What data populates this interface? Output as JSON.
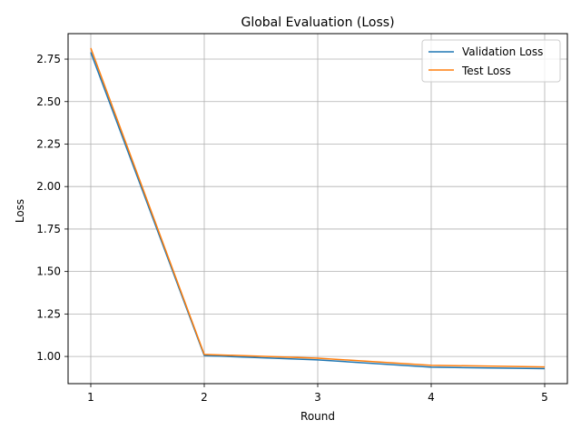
{
  "chart_data": {
    "type": "line",
    "title": "Global Evaluation (Loss)",
    "xlabel": "Round",
    "ylabel": "Loss",
    "x": [
      1,
      2,
      3,
      4,
      5
    ],
    "xticks": [
      1,
      2,
      3,
      4,
      5
    ],
    "yticks": [
      1.0,
      1.25,
      1.5,
      1.75,
      2.0,
      2.25,
      2.5,
      2.75
    ],
    "ytick_labels": [
      "1.00",
      "1.25",
      "1.50",
      "1.75",
      "2.00",
      "2.25",
      "2.50",
      "2.75"
    ],
    "xlim": [
      0.8,
      5.2
    ],
    "ylim": [
      0.84,
      2.9
    ],
    "grid": true,
    "legend_position": "top-right",
    "series": [
      {
        "name": "Validation Loss",
        "color": "#1f77b4",
        "values": [
          2.79,
          1.005,
          0.98,
          0.937,
          0.928
        ]
      },
      {
        "name": "Test Loss",
        "color": "#ff7f0e",
        "values": [
          2.815,
          1.012,
          0.99,
          0.948,
          0.938
        ]
      }
    ]
  }
}
